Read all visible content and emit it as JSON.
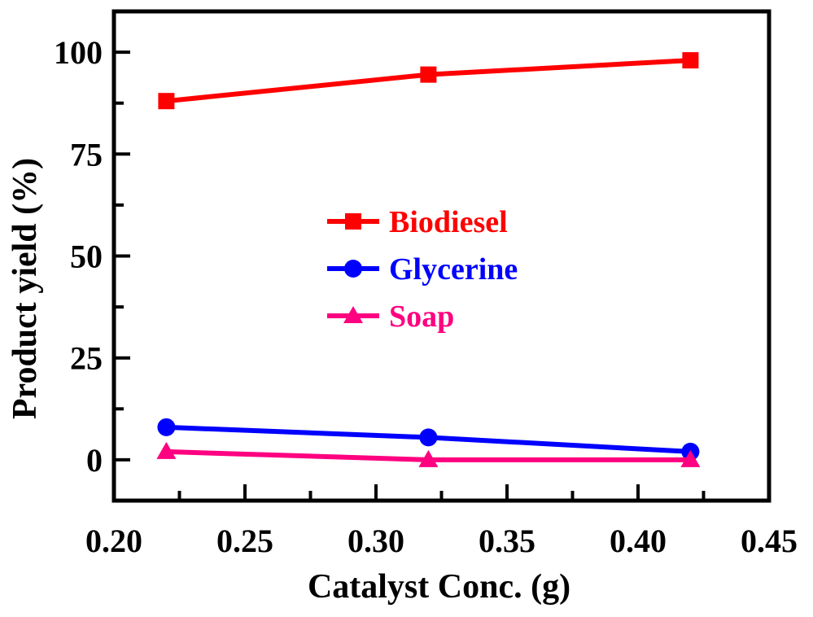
{
  "chart_data": {
    "type": "line",
    "xlabel": "Catalyst Conc. (g)",
    "ylabel": "Product yield (%)",
    "xlim": [
      0.2,
      0.45
    ],
    "ylim": [
      -10,
      110
    ],
    "xticks": [
      "0.20",
      "0.25",
      "0.30",
      "0.35",
      "0.40",
      "0.45"
    ],
    "yticks": [
      "0",
      "25",
      "50",
      "75",
      "100"
    ],
    "x": [
      0.22,
      0.32,
      0.42
    ],
    "series": [
      {
        "name": "Biodiesel",
        "values": [
          88,
          94.5,
          98
        ],
        "color": "#ff0000",
        "marker": "square"
      },
      {
        "name": "Glycerine",
        "values": [
          8,
          5.5,
          2
        ],
        "color": "#0000ff",
        "marker": "circle"
      },
      {
        "name": "Soap",
        "values": [
          2,
          0,
          0
        ],
        "color": "#ff0080",
        "marker": "triangle"
      }
    ],
    "legend_position": "center",
    "grid": false
  }
}
